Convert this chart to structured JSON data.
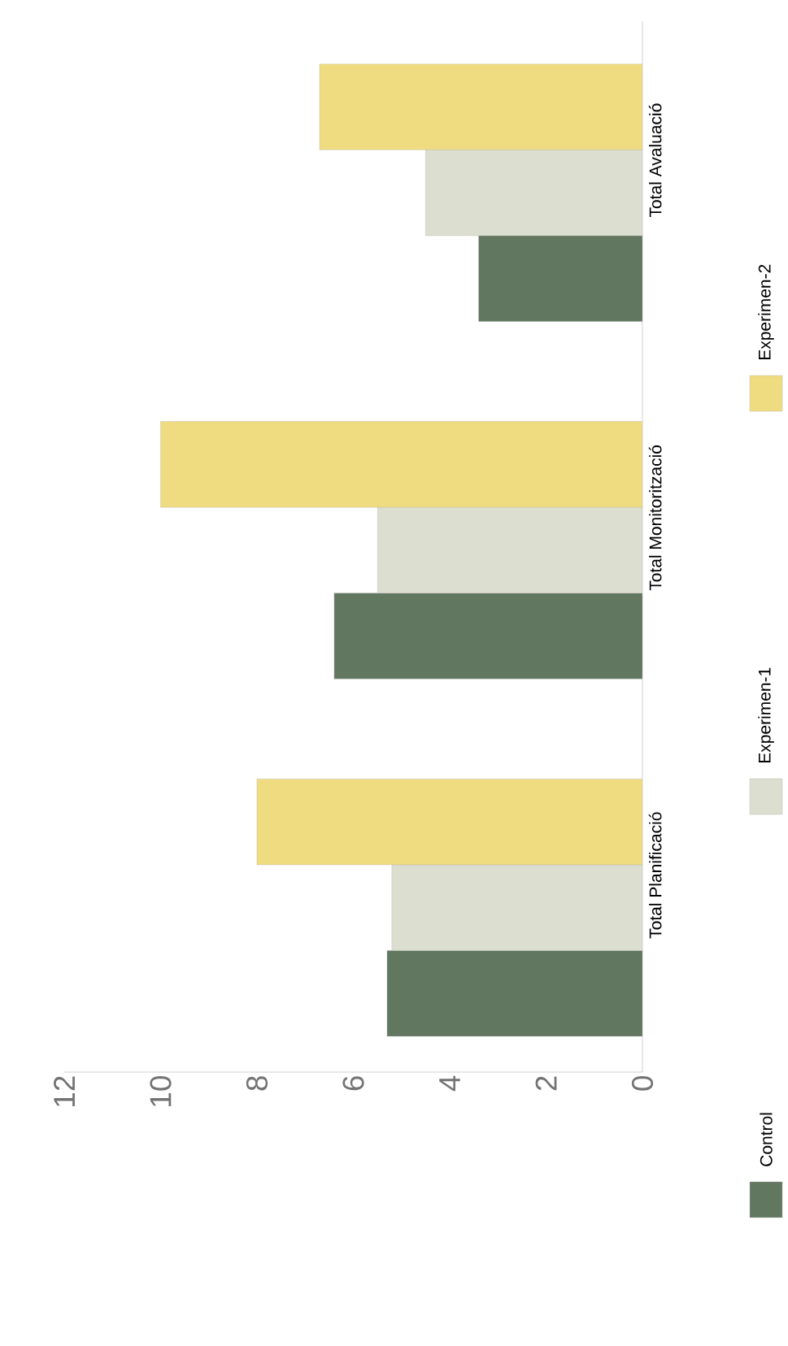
{
  "chart_data": {
    "type": "bar",
    "orientation": "horizontal",
    "categories": [
      "Total Avaluació",
      "Total Monitorització",
      "Total Planificació"
    ],
    "series": [
      {
        "name": "Control",
        "color": "#61775f",
        "values": [
          3.4,
          6.4,
          5.3
        ]
      },
      {
        "name": "Experimen-1",
        "color": "#dcdfcf",
        "values": [
          4.5,
          5.5,
          5.2
        ]
      },
      {
        "name": "Experimen-2",
        "color": "#f0dc80",
        "values": [
          6.7,
          10.0,
          8.0
        ]
      }
    ],
    "xlim": [
      12,
      0
    ],
    "xticks": [
      0,
      2,
      4,
      6,
      8,
      10,
      12
    ],
    "legend": "right"
  }
}
